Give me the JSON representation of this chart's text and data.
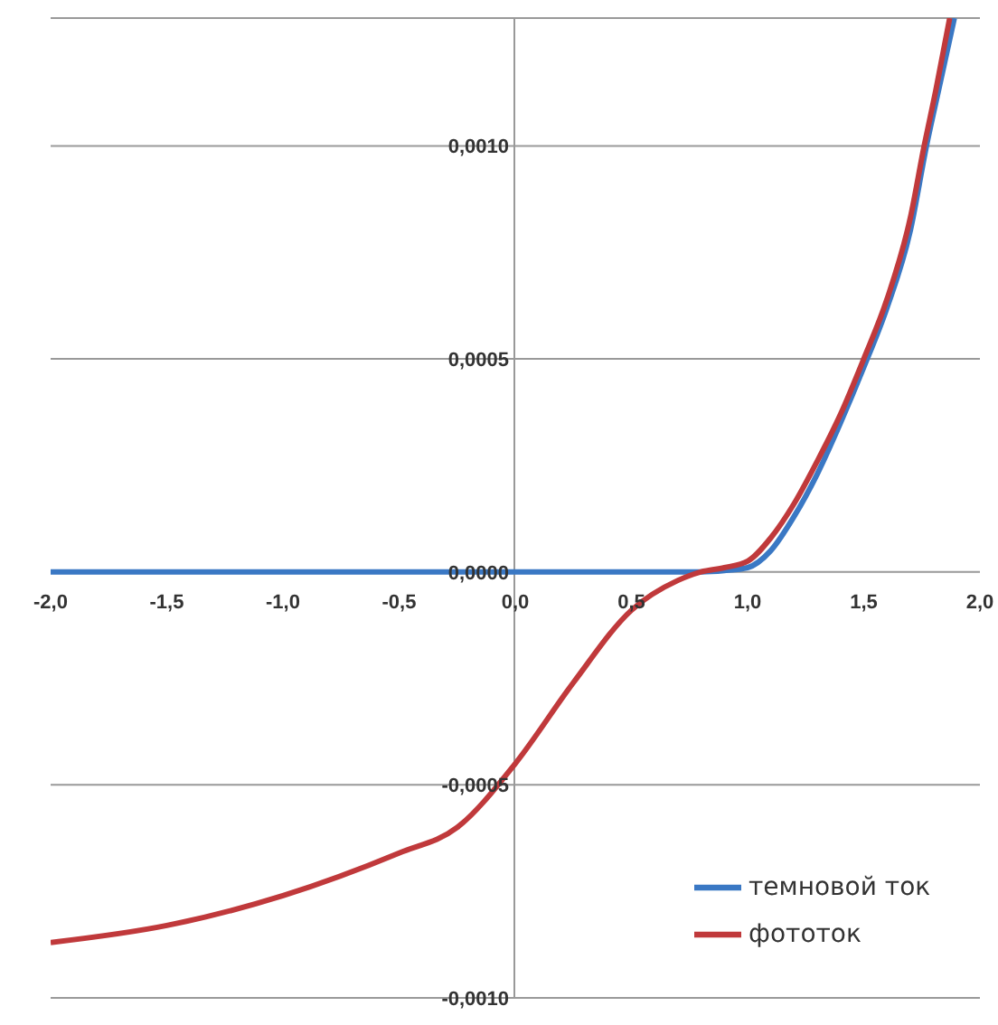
{
  "chart_data": {
    "type": "line",
    "xlim": [
      -2,
      2
    ],
    "ylim": [
      -0.001,
      0.0013
    ],
    "xticks": [
      {
        "value": -2,
        "label": "-2,0"
      },
      {
        "value": -1.5,
        "label": "-1,5"
      },
      {
        "value": -1,
        "label": "-1,0"
      },
      {
        "value": -0.5,
        "label": "-0,5"
      },
      {
        "value": 0,
        "label": "0,0"
      },
      {
        "value": 0.5,
        "label": "0,5"
      },
      {
        "value": 1,
        "label": "1,0"
      },
      {
        "value": 1.5,
        "label": "1,5"
      },
      {
        "value": 2,
        "label": "2,0"
      }
    ],
    "yticks": [
      {
        "value": -0.001,
        "label": "-0,0010"
      },
      {
        "value": -0.0005,
        "label": "-0,0005"
      },
      {
        "value": 0,
        "label": "0,0000"
      },
      {
        "value": 0.0005,
        "label": "0,0005"
      },
      {
        "value": 0.001,
        "label": "0,0010"
      }
    ],
    "grid": "y",
    "legend": "bottom right",
    "marker": "none",
    "line_style": "solid",
    "series": [
      {
        "name": "темновой ток",
        "color": "#3a78c4",
        "x": [
          -2,
          -1.5,
          -1,
          -0.5,
          0,
          0.5,
          0.8,
          0.9,
          1,
          1.1,
          1.2,
          1.3,
          1.4,
          1.5,
          1.6,
          1.7,
          1.77,
          1.83,
          1.89
        ],
        "values": [
          0,
          0,
          0,
          0,
          0,
          0,
          0,
          3e-06,
          1e-05,
          5e-05,
          0.00013,
          0.00023,
          0.00035,
          0.00048,
          0.00062,
          0.0008,
          0.001,
          0.00115,
          0.0013
        ]
      },
      {
        "name": "фототок",
        "color": "#c0393b",
        "x": [
          -2,
          -1.5,
          -1,
          -0.5,
          -0.25,
          0,
          0.25,
          0.5,
          0.7,
          0.8,
          0.9,
          1,
          1.1,
          1.2,
          1.3,
          1.4,
          1.5,
          1.6,
          1.7,
          1.76,
          1.81,
          1.87
        ],
        "values": [
          -0.00087,
          -0.00083,
          -0.00076,
          -0.00066,
          -0.0006,
          -0.00045,
          -0.00026,
          -9e-05,
          -2e-05,
          0,
          1e-05,
          2.5e-05,
          8e-05,
          0.00016,
          0.00026,
          0.00037,
          0.0005,
          0.00064,
          0.00083,
          0.001,
          0.00113,
          0.0013
        ]
      }
    ]
  }
}
